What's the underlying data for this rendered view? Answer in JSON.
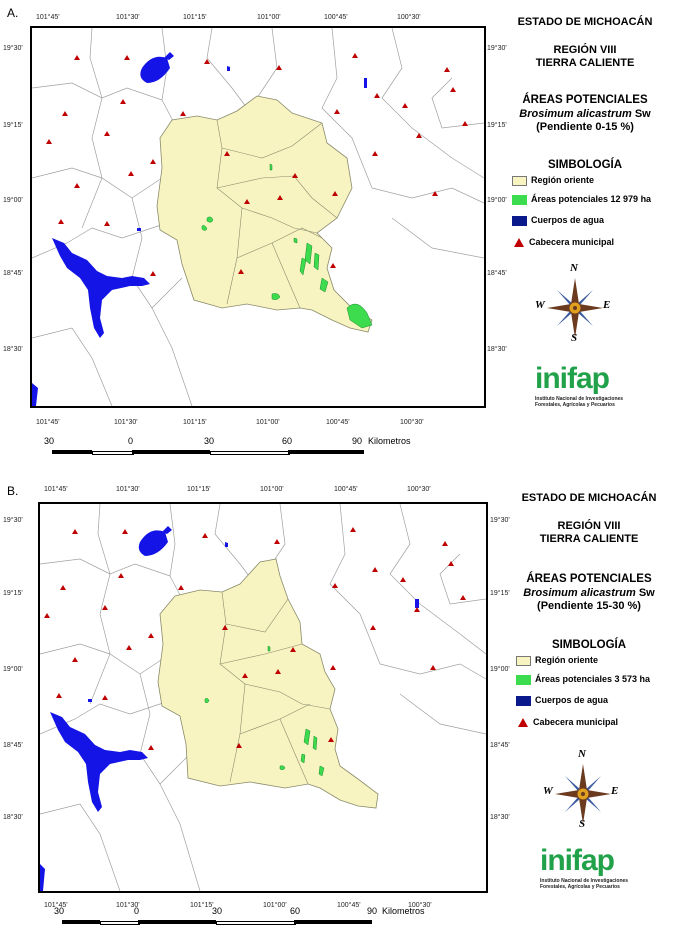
{
  "panels": [
    {
      "label": "A.",
      "state": "ESTADO DE MICHOACÁN",
      "region_line1": "REGIÓN VIII",
      "region_line2": "TIERRA CALIENTE",
      "areas_title": "ÁREAS POTENCIALES",
      "species_name": "Brosimum alicastrum",
      "species_author": "Sw",
      "slope": "(Pendiente 0-15 %)",
      "symbology_title": "SIMBOLOGÍA",
      "legend": [
        {
          "label": "Región oriente",
          "color": "#f8f4c2"
        },
        {
          "label": "Áreas potenciales 12 979 ha",
          "color": "#3ddc4f"
        },
        {
          "label": "Cuerpos de agua",
          "color": "#0a1a8c"
        },
        {
          "label": "Cabecera municipal",
          "color": "#c00000"
        }
      ],
      "top_lon": [
        "101°45'",
        "101°30'",
        "101°15'",
        "101°00'",
        "100°45'",
        "100°30'"
      ],
      "bottom_lon": [
        "101°45'",
        "101°30'",
        "101°15'",
        "101°00'",
        "100°45'",
        "100°30'"
      ],
      "left_lat": [
        "19°30'",
        "19°15'",
        "19°00'",
        "18°45'",
        "18°30'"
      ],
      "right_lat": [
        "19°30'",
        "19°15'",
        "19°00'",
        "18°45'",
        "18°30'"
      ],
      "scale_ticks": [
        "30",
        "0",
        "30",
        "60",
        "90"
      ],
      "scale_unit": "Kilometros"
    },
    {
      "label": "B.",
      "state": "ESTADO DE MICHOACÁN",
      "region_line1": "REGIÓN VIII",
      "region_line2": "TIERRA CALIENTE",
      "areas_title": "ÁREAS POTENCIALES",
      "species_name": "Brosimum alicastrum",
      "species_author": "Sw",
      "slope": "(Pendiente 15-30 %)",
      "symbology_title": "SIMBOLOGÍA",
      "legend": [
        {
          "label": "Región oriente",
          "color": "#f8f4c2"
        },
        {
          "label": "Áreas potenciales 3 573 ha",
          "color": "#3ddc4f"
        },
        {
          "label": "Cuerpos de agua",
          "color": "#0a1a8c"
        },
        {
          "label": "Cabecera municipal",
          "color": "#c00000"
        }
      ],
      "top_lon": [
        "101°45'",
        "101°30'",
        "101°15'",
        "101°00'",
        "100°45'",
        "100°30'"
      ],
      "bottom_lon": [
        "101°45'",
        "101°30'",
        "101°15'",
        "101°00'",
        "100°45'",
        "100°30'"
      ],
      "left_lat": [
        "19°30'",
        "19°15'",
        "19°00'",
        "18°45'",
        "18°30'"
      ],
      "right_lat": [
        "19°30'",
        "19°15'",
        "19°00'",
        "18°45'",
        "18°30'"
      ],
      "scale_ticks": [
        "30",
        "0",
        "30",
        "60",
        "90"
      ],
      "scale_unit": "Kilometros"
    }
  ],
  "compass": {
    "n": "N",
    "s": "S",
    "e": "E",
    "w": "W"
  },
  "logo": {
    "word": "inifap",
    "subtitle": "Instituto Nacional de Investigaciones Forestales, Agrícolas y Pecuarios"
  },
  "colors": {
    "water": "#1414e6",
    "region": "#f8f4c2",
    "potential": "#3ddc4f",
    "town": "#c00000",
    "boundary": "#9a9a9a"
  }
}
